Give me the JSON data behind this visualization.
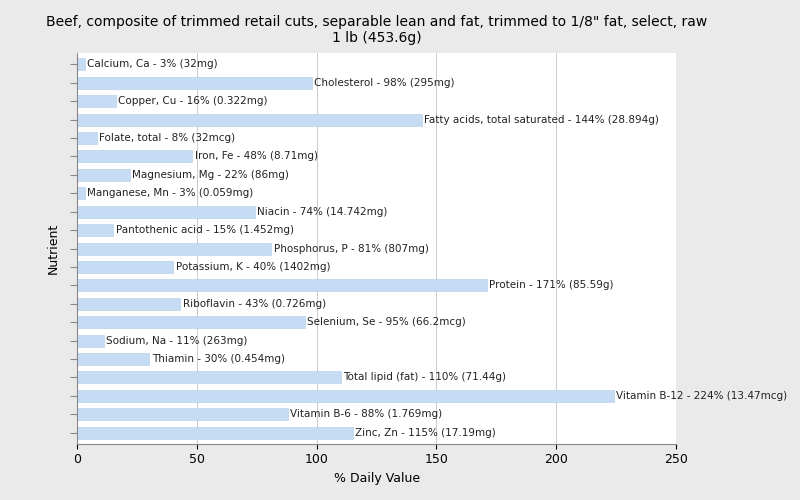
{
  "title": "Beef, composite of trimmed retail cuts, separable lean and fat, trimmed to 1/8\" fat, select, raw\n1 lb (453.6g)",
  "xlabel": "% Daily Value",
  "ylabel": "Nutrient",
  "bar_color": "#c6dcf5",
  "bar_edge_color": "#b0cce8",
  "background_color": "#eaeaea",
  "plot_background": "#ffffff",
  "nutrients": [
    "Calcium, Ca - 3% (32mg)",
    "Cholesterol - 98% (295mg)",
    "Copper, Cu - 16% (0.322mg)",
    "Fatty acids, total saturated - 144% (28.894g)",
    "Folate, total - 8% (32mcg)",
    "Iron, Fe - 48% (8.71mg)",
    "Magnesium, Mg - 22% (86mg)",
    "Manganese, Mn - 3% (0.059mg)",
    "Niacin - 74% (14.742mg)",
    "Pantothenic acid - 15% (1.452mg)",
    "Phosphorus, P - 81% (807mg)",
    "Potassium, K - 40% (1402mg)",
    "Protein - 171% (85.59g)",
    "Riboflavin - 43% (0.726mg)",
    "Selenium, Se - 95% (66.2mcg)",
    "Sodium, Na - 11% (263mg)",
    "Thiamin - 30% (0.454mg)",
    "Total lipid (fat) - 110% (71.44g)",
    "Vitamin B-12 - 224% (13.47mcg)",
    "Vitamin B-6 - 88% (1.769mg)",
    "Zinc, Zn - 115% (17.19mg)"
  ],
  "values": [
    3,
    98,
    16,
    144,
    8,
    48,
    22,
    3,
    74,
    15,
    81,
    40,
    171,
    43,
    95,
    11,
    30,
    110,
    224,
    88,
    115
  ],
  "xlim": [
    0,
    250
  ],
  "xticks": [
    0,
    50,
    100,
    150,
    200,
    250
  ],
  "title_fontsize": 10,
  "label_fontsize": 7.5,
  "axis_label_fontsize": 9,
  "tick_fontsize": 9
}
